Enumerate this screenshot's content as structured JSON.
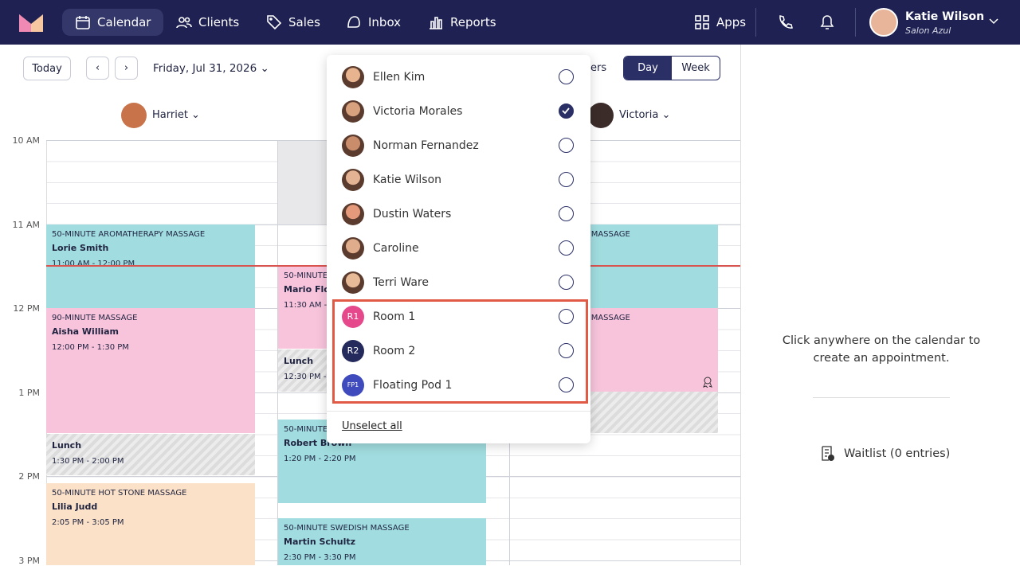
{
  "nav": {
    "items": [
      "Calendar",
      "Clients",
      "Sales",
      "Inbox",
      "Reports"
    ],
    "apps": "Apps",
    "user": {
      "name": "Katie Wilson",
      "org": "Salon Azul"
    }
  },
  "toolbar": {
    "today": "Today",
    "date": "Friday, Jul 31, 2026",
    "staff_fragment": "ers",
    "views": [
      "Day",
      "Week"
    ]
  },
  "staff": [
    "Harriet",
    "Victoria"
  ],
  "times": [
    "10 AM",
    "11 AM",
    "12 PM",
    "1 PM",
    "2 PM",
    "3 PM"
  ],
  "appointments": [
    {
      "service": "50-MINUTE AROMATHERAPY MASSAGE",
      "client": "Lorie Smith",
      "time": "11:00 AM - 12:00 PM"
    },
    {
      "service": "90-MINUTE MASSAGE",
      "client": "Aisha William",
      "time": "12:00 PM - 1:30 PM"
    },
    {
      "service": "Lunch",
      "time": "1:30 PM - 2:00 PM"
    },
    {
      "service": "50-MINUTE HOT STONE MASSAGE",
      "client": "Lilia Judd",
      "time": "2:05 PM - 3:05 PM"
    },
    {
      "service": "50-MINUTE",
      "client": "Mario Flor",
      "time": "11:30 AM -"
    },
    {
      "service": "Lunch",
      "time": "12:30 PM -"
    },
    {
      "service": "50-MINUTE",
      "client": "Robert Brown",
      "time": "1:20 PM - 2:20 PM"
    },
    {
      "service": "50-MINUTE SWEDISH MASSAGE",
      "client": "Martin Schultz",
      "time": "2:30 PM - 3:30 PM"
    },
    {
      "service": "H MASSAGE"
    },
    {
      "service": "H MASSAGE"
    }
  ],
  "dropdown": {
    "options": [
      {
        "name": "Ellen Kim",
        "checked": false
      },
      {
        "name": "Victoria Morales",
        "checked": true
      },
      {
        "name": "Norman Fernandez",
        "checked": false
      },
      {
        "name": "Katie Wilson",
        "checked": false
      },
      {
        "name": "Dustin Waters",
        "checked": false
      },
      {
        "name": "Caroline",
        "checked": false
      },
      {
        "name": "Terri Ware",
        "checked": false
      },
      {
        "name": "Room 1",
        "initials": "R1",
        "checked": false
      },
      {
        "name": "Room 2",
        "initials": "R2",
        "checked": false
      },
      {
        "name": "Floating Pod 1",
        "initials": "FP1",
        "checked": false
      }
    ],
    "unselect": "Unselect all"
  },
  "panel": {
    "hint": "Click anywhere on the calendar to create an appointment.",
    "waitlist": "Waitlist (0 entries)"
  }
}
